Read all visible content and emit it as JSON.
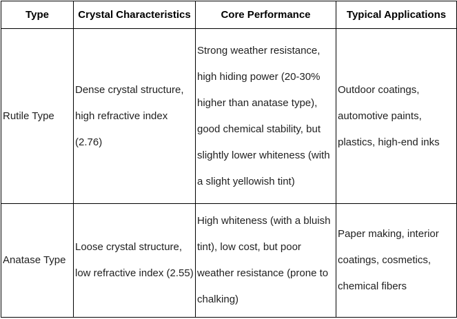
{
  "table": {
    "headers": [
      "Type",
      "Crystal Characteristics",
      "Core Performance",
      "Typical Applications"
    ],
    "rows": [
      {
        "type": "Rutile Type",
        "crystal": "Dense crystal structure, high refractive index (2.76)",
        "performance": "Strong weather resistance, high hiding power (20-30% higher than anatase type), good chemical stability, but slightly lower whiteness (with a slight yellowish tint)",
        "applications": "Outdoor coatings, automotive paints, plastics, high-end inks"
      },
      {
        "type": "Anatase Type",
        "crystal": "Loose crystal structure, low refractive index (2.55)",
        "performance": "High whiteness (with a bluish tint), low cost, but poor weather resistance (prone to chalking)",
        "applications": "Paper making, interior coatings, cosmetics, chemical fibers"
      }
    ]
  },
  "colors": {
    "border": "#000000",
    "header_text": "#000000",
    "body_text": "#1f1f1f",
    "background": "#ffffff"
  }
}
